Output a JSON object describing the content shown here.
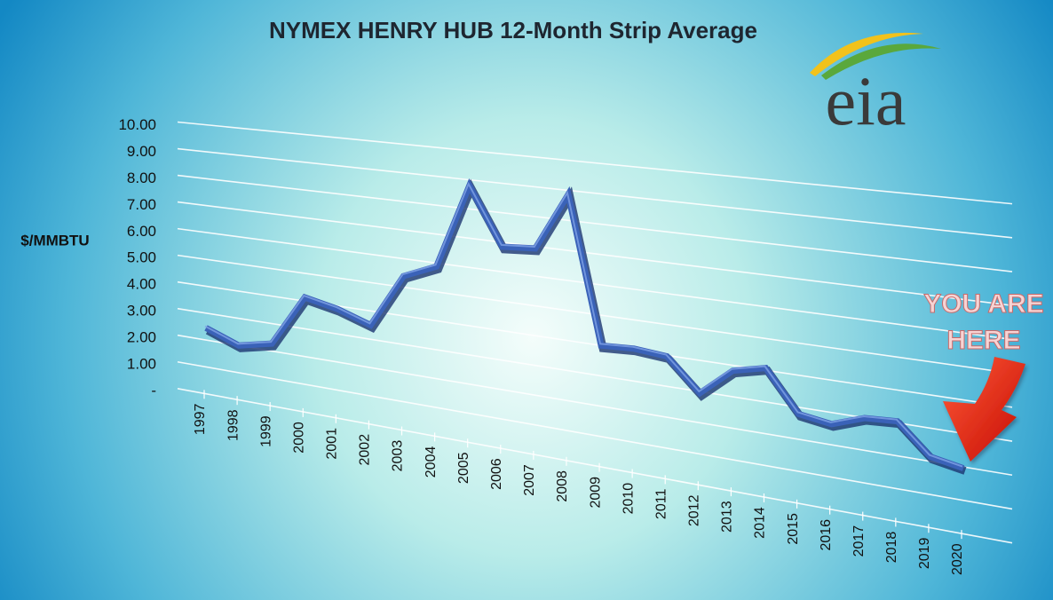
{
  "chart_data": {
    "type": "line",
    "title": "NYMEX HENRY HUB 12-Month Strip Average",
    "y_label": "$/MMBTU",
    "logo": "eia",
    "annotation": [
      "YOU ARE",
      "HERE"
    ],
    "categories": [
      "1997",
      "1998",
      "1999",
      "2000",
      "2001",
      "2002",
      "2003",
      "2004",
      "2005",
      "2006",
      "2007",
      "2008",
      "2009",
      "2010",
      "2011",
      "2012",
      "2013",
      "2014",
      "2015",
      "2016",
      "2017",
      "2018",
      "2019",
      "2020"
    ],
    "series": [
      {
        "name": "NYMEX Henry Hub 12-Month Strip Average",
        "color": "#3a62b8",
        "values": [
          2.45,
          2.0,
          2.27,
          4.13,
          3.89,
          3.5,
          5.39,
          5.88,
          8.8,
          6.85,
          6.93,
          8.86,
          4.0,
          4.06,
          3.97,
          2.95,
          3.83,
          4.07,
          2.79,
          2.64,
          2.99,
          3.05,
          2.14,
          1.96
        ]
      }
    ],
    "ylim": [
      0,
      10
    ],
    "yticks": [
      {
        "value": 0,
        "label": "-"
      },
      {
        "value": 1,
        "label": "1.00"
      },
      {
        "value": 2,
        "label": "2.00"
      },
      {
        "value": 3,
        "label": "3.00"
      },
      {
        "value": 4,
        "label": "4.00"
      },
      {
        "value": 5,
        "label": "5.00"
      },
      {
        "value": 6,
        "label": "6.00"
      },
      {
        "value": 7,
        "label": "7.00"
      },
      {
        "value": 8,
        "label": "8.00"
      },
      {
        "value": 9,
        "label": "9.00"
      },
      {
        "value": 10,
        "label": "10.00"
      }
    ],
    "grid": true
  }
}
